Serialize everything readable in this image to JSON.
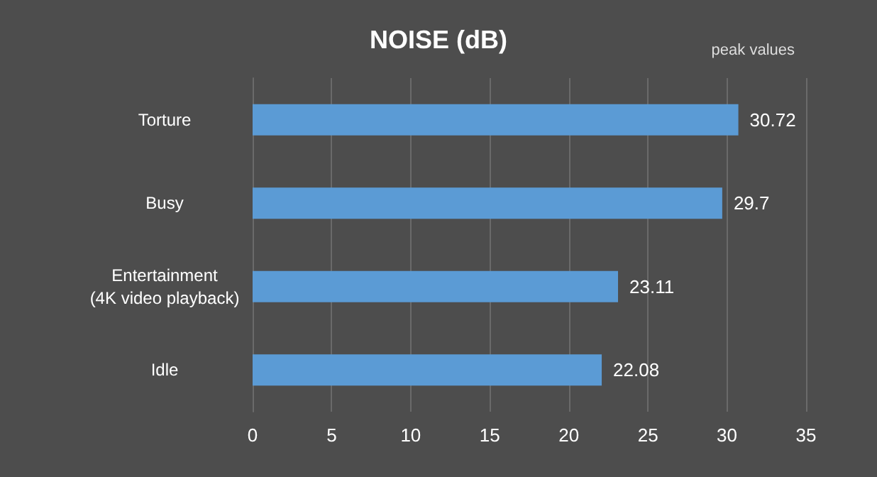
{
  "chart_data": {
    "type": "bar",
    "orientation": "horizontal",
    "title": "NOISE (dB)",
    "annotations": [
      "peak values"
    ],
    "categories": [
      "Torture",
      "Busy",
      "Entertainment\n(4K video playback)",
      "Idle"
    ],
    "values": [
      30.72,
      29.7,
      23.11,
      22.08
    ],
    "color": "#5b9bd5",
    "xlim": [
      0,
      35
    ],
    "xticks": [
      0,
      5,
      10,
      15,
      20,
      25,
      30,
      35
    ],
    "grid": "x",
    "data_labels": true
  }
}
